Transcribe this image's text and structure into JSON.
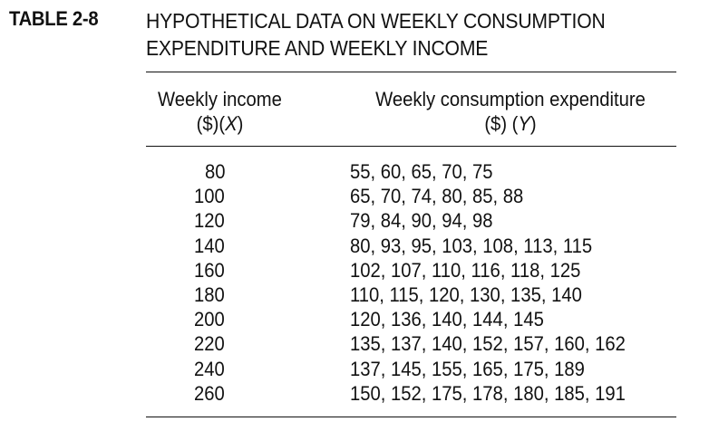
{
  "table": {
    "label": "TABLE 2-8",
    "title_line1": "HYPOTHETICAL DATA ON WEEKLY CONSUMPTION",
    "title_line2": "EXPENDITURE AND WEEKLY INCOME",
    "columns": [
      {
        "header_line1": "Weekly income",
        "header_unit": "($)",
        "header_var": "X"
      },
      {
        "header_line1": "Weekly consumption expenditure",
        "header_unit": "($) ",
        "header_var": "Y"
      }
    ],
    "rows": [
      {
        "income": "80",
        "consumption": "55, 60, 65, 70, 75"
      },
      {
        "income": "100",
        "consumption": "65, 70, 74, 80, 85, 88"
      },
      {
        "income": "120",
        "consumption": "79, 84, 90, 94, 98"
      },
      {
        "income": "140",
        "consumption": "80, 93, 95, 103, 108, 113, 115"
      },
      {
        "income": "160",
        "consumption": "102, 107, 110, 116, 118, 125"
      },
      {
        "income": "180",
        "consumption": "110, 115, 120, 130, 135, 140"
      },
      {
        "income": "200",
        "consumption": "120, 136, 140, 144, 145"
      },
      {
        "income": "220",
        "consumption": "135, 137, 140, 152, 157, 160, 162"
      },
      {
        "income": "240",
        "consumption": "137, 145, 155, 165, 175, 189"
      },
      {
        "income": "260",
        "consumption": "150, 152, 175, 178, 180, 185, 191"
      }
    ]
  }
}
